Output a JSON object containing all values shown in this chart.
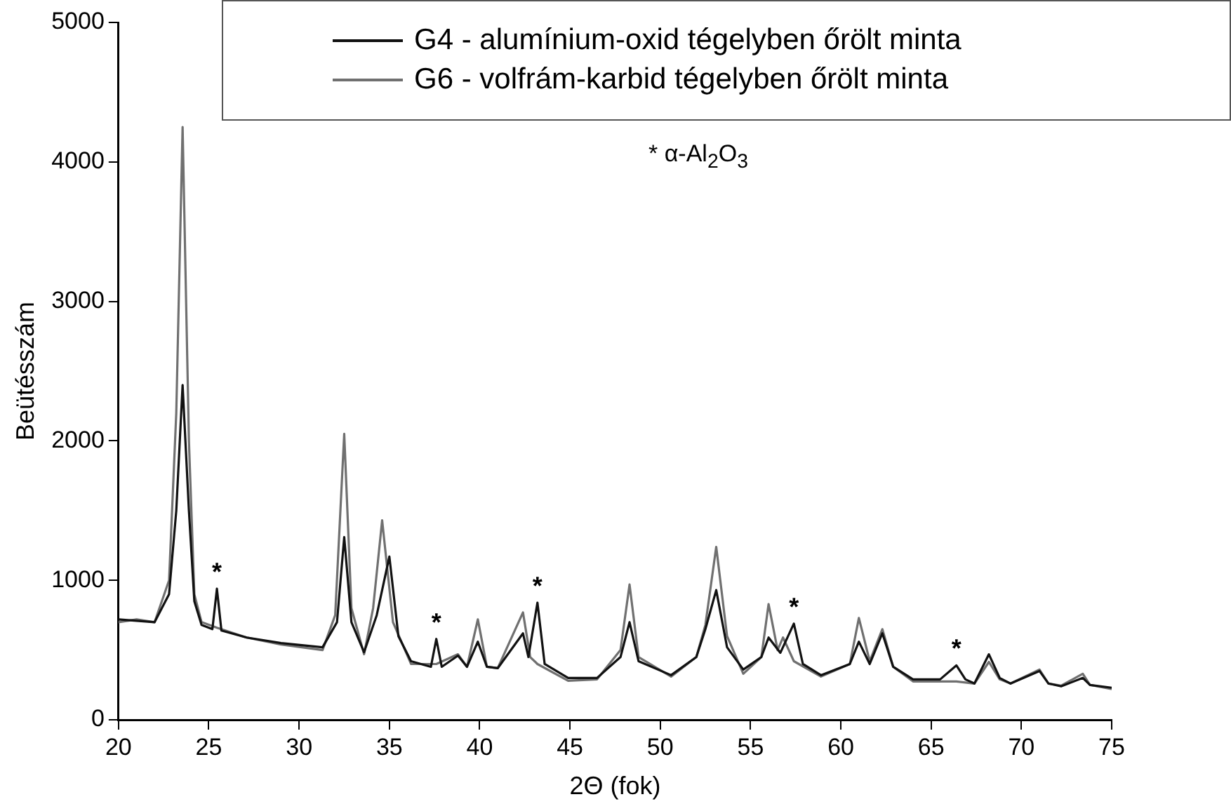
{
  "chart_data": {
    "type": "line",
    "xlabel": "2Θ (fok)",
    "ylabel": "Beütésszám",
    "xlim": [
      20,
      75
    ],
    "xticks": [
      20,
      25,
      30,
      35,
      40,
      45,
      50,
      55,
      60,
      65,
      70,
      75
    ],
    "ylim": [
      0,
      5000
    ],
    "yticks": [
      0,
      1000,
      2000,
      3000,
      4000,
      5000
    ],
    "grid": false,
    "legend": "top right",
    "marker": "none",
    "line_style": "solid",
    "annotations": [
      "* α-Al$_{2}$O$_{3}$",
      {
        "text": "*",
        "x": 25.45,
        "y": 940
      },
      {
        "text": "*",
        "x": 37.6,
        "y": 580
      },
      {
        "text": "*",
        "x": 43.2,
        "y": 840
      },
      {
        "text": "*",
        "x": 57.4,
        "y": 690
      },
      {
        "text": "*",
        "x": 66.4,
        "y": 390
      }
    ],
    "series": [
      {
        "name": "G4 - alumínium-oxid tégelyben őrölt minta",
        "color": "#111111",
        "x": [
          20,
          21,
          22,
          22.8,
          23.2,
          23.55,
          23.9,
          24.2,
          24.6,
          25.2,
          25.45,
          25.7,
          27.1,
          29,
          31.3,
          32.1,
          32.5,
          32.9,
          33.6,
          34.3,
          35.0,
          35.5,
          36.2,
          37.3,
          37.6,
          37.9,
          38.8,
          39.3,
          39.9,
          40.4,
          41.0,
          42.4,
          42.7,
          43.2,
          43.6,
          44.9,
          46.5,
          47.8,
          48.3,
          48.8,
          50.6,
          52.0,
          52.5,
          53.1,
          53.7,
          54.6,
          55.6,
          56.0,
          56.65,
          57.4,
          57.9,
          58.9,
          60.5,
          61.0,
          61.6,
          62.3,
          62.9,
          64.0,
          65.5,
          66.4,
          66.9,
          67.4,
          68.2,
          68.8,
          69.4,
          71.0,
          71.5,
          72.2,
          73.4,
          73.8,
          75
        ],
        "values": [
          720,
          710,
          700,
          900,
          1500,
          2400,
          1500,
          850,
          680,
          650,
          940,
          640,
          590,
          550,
          520,
          700,
          1310,
          700,
          485,
          750,
          1170,
          600,
          420,
          380,
          580,
          380,
          460,
          380,
          560,
          380,
          370,
          620,
          450,
          840,
          400,
          300,
          300,
          450,
          700,
          420,
          320,
          450,
          650,
          930,
          520,
          360,
          450,
          590,
          480,
          690,
          400,
          320,
          400,
          560,
          400,
          620,
          380,
          290,
          290,
          390,
          290,
          260,
          470,
          300,
          260,
          350,
          260,
          240,
          300,
          250,
          230
        ]
      },
      {
        "name": "G6 - volfrám-karbid tégelyben őrölt minta",
        "color": "#707070",
        "x": [
          20,
          21,
          22,
          22.8,
          23.2,
          23.55,
          23.9,
          24.2,
          24.6,
          25.45,
          27.1,
          29,
          31.3,
          32.0,
          32.5,
          32.9,
          33.6,
          34.1,
          34.6,
          35.2,
          36.2,
          37.6,
          38.8,
          39.3,
          39.9,
          40.4,
          41.0,
          42.4,
          42.8,
          43.2,
          44.9,
          46.5,
          47.8,
          48.3,
          48.8,
          50.6,
          52.0,
          52.5,
          53.1,
          53.7,
          54.6,
          55.6,
          56.0,
          56.5,
          56.8,
          57.4,
          58.9,
          60.5,
          61.0,
          61.6,
          62.3,
          62.9,
          64.0,
          66.4,
          67.4,
          68.2,
          68.8,
          69.4,
          71.0,
          71.5,
          72.2,
          73.4,
          73.8,
          75
        ],
        "values": [
          700,
          720,
          700,
          1000,
          2200,
          4250,
          2000,
          900,
          700,
          660,
          590,
          540,
          500,
          750,
          2050,
          800,
          470,
          800,
          1430,
          700,
          400,
          400,
          470,
          380,
          720,
          380,
          370,
          770,
          450,
          400,
          280,
          290,
          500,
          970,
          450,
          310,
          450,
          680,
          1240,
          600,
          330,
          450,
          830,
          500,
          590,
          420,
          310,
          400,
          730,
          420,
          650,
          380,
          275,
          275,
          260,
          415,
          290,
          260,
          360,
          260,
          245,
          330,
          250,
          220
        ]
      }
    ]
  }
}
